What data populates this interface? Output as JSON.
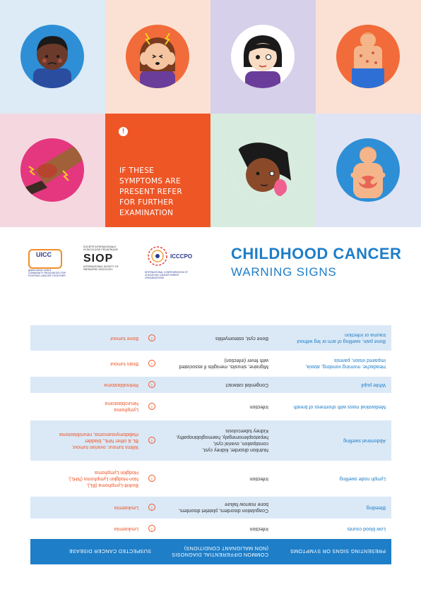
{
  "alert": {
    "icon": "exclamation-icon",
    "text": "IF THESE\nSYMPTOMS ARE\nPRESENT REFER\nFOR FURTHER\nEXAMINATION"
  },
  "tiles": [
    {
      "bg": "#dcebf6",
      "circle": "#2e8fd6",
      "illustration": "child-sad-icon"
    },
    {
      "bg": "#fbe1d3",
      "circle": "#f26b3a",
      "illustration": "child-headache-icon"
    },
    {
      "bg": "#d6d0ea",
      "circle": "#ffffff",
      "illustration": "child-eye-icon"
    },
    {
      "bg": "#fbe1d3",
      "circle": "#f26b3a",
      "illustration": "child-body-icon"
    },
    {
      "bg": "#f5d7e0",
      "circle": "#e4377f",
      "illustration": "leg-pain-icon"
    },
    {
      "bg": "#d7ecdf",
      "circle": "#ffffff",
      "illustration": "child-neck-icon"
    },
    {
      "bg": "#dfe4f5",
      "circle": "#2e8fd6",
      "illustration": "child-abdomen-icon"
    }
  ],
  "logos": {
    "uicc": {
      "name": "UICC",
      "sub": "global cancer control\nCOMMUNITY RESOURCES FOR FIGHTING CANCER TOGETHER"
    },
    "siop": {
      "top": "SOCIÉTÉ INTERNATIONALE D'ONCOLOGIE PÉDIATRIQUE",
      "mark": "SIOP",
      "bottom": "INTERNATIONAL SOCIETY OF PAEDIATRIC ONCOLOGY"
    },
    "icc": {
      "name": "ICCCPO",
      "sub": "INTERNATIONAL CONFEDERATION OF CHILDHOOD CANCER PARENT ORGANIZATIONS"
    }
  },
  "headline": {
    "title": "CHILDHOOD CANCER",
    "subtitle": "WARNING SIGNS"
  },
  "table": {
    "headers": {
      "symptoms": "PRESENTING SIGNS OR SYMPTOMS",
      "differential": "COMMON DIFFERENTIAL DIAGNOSIS (NON MALIGNANT CONDITIONS)",
      "cancer": "SUSPECTED CANCER DISEASE"
    },
    "rows": [
      {
        "symptom": "Low blood counts",
        "differential": "Infection",
        "cancer": "Leukaemia"
      },
      {
        "symptom": "Bleeding",
        "differential": "Coagulation disorders, platelet disorders,\nbone marrow failure",
        "cancer": "Leukaemia"
      },
      {
        "symptom": "Lymph node swelling",
        "differential": "Infection",
        "cancer": "Burkitt-Lymphoma (BL),\nNon-Hodgkin Lymphoma (NHL),\nHodgkin Lymphoma"
      },
      {
        "symptom": "Abdominal swelling",
        "differential": "Nutrition disorder, kidney cyst,\nconstipation, ovarial cyst,\nhepatosplenomegaly, haemoglobinopathy,\nKidney tuberculosis",
        "cancer": "Wilms tumour, ovarian tumour,\nBL & other NHL, bladder\nrhabdomyosarcoma, neuroblastoma"
      },
      {
        "symptom": "Mediastinal mass with shortness of breath",
        "differential": "Infection",
        "cancer": "Lymphoma\nNeuroblastoma"
      },
      {
        "symptom": "White pupil",
        "differential": "Congenital cataract",
        "cancer": "Retinoblastoma"
      },
      {
        "symptom": "Headache, morning vomiting, ataxia,\nimpaired vision, paresis",
        "differential": "Migraine, sinusits, menigitis if associated\nwith fever (infection)",
        "cancer": "Brain tumour"
      },
      {
        "symptom": "Bone pain, swelling of arm or leg without\ntrauma or infection",
        "differential": "Bone cyst, osteomyelitis",
        "cancer": "Bone tumour"
      }
    ]
  }
}
